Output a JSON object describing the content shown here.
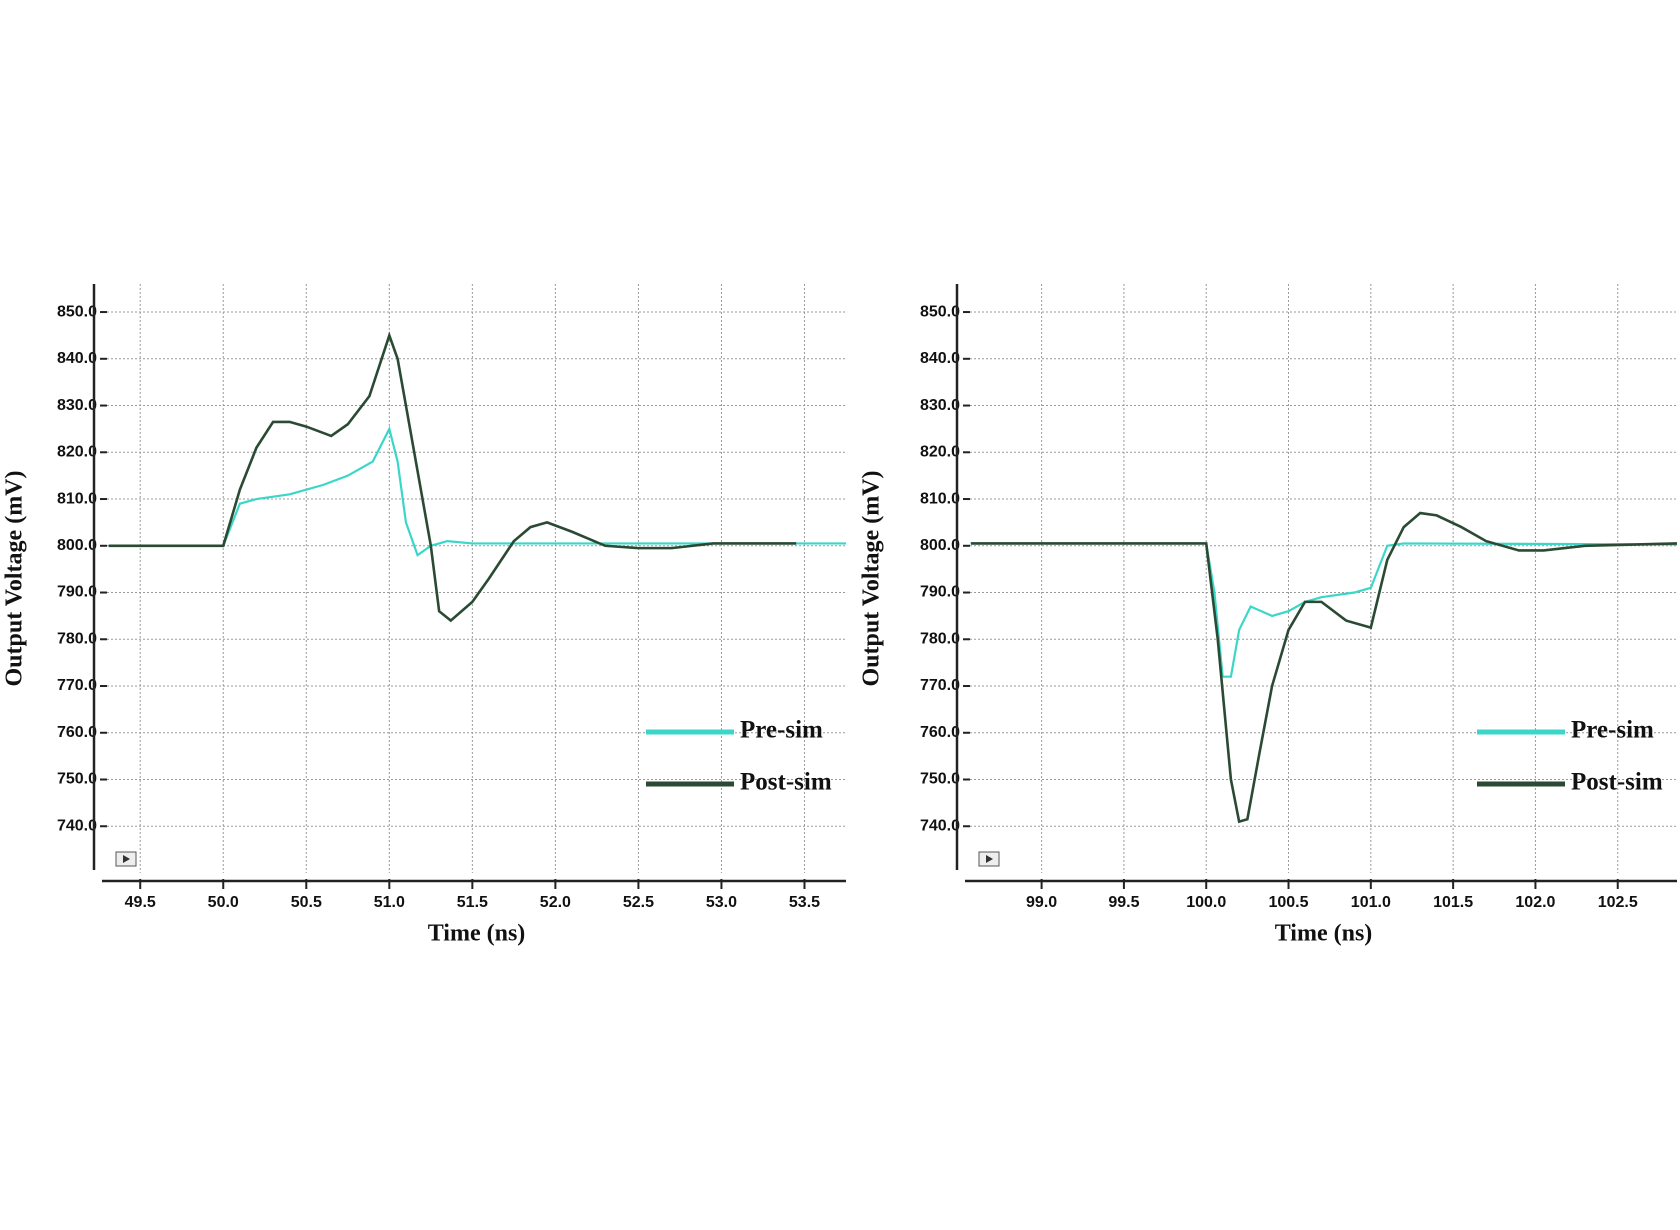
{
  "chart_data": [
    {
      "type": "line",
      "xlabel": "Time (ns)",
      "ylabel": "Output Voltage (mV)",
      "xlim": [
        49.3,
        53.75
      ],
      "ylim": [
        730,
        856
      ],
      "xticks": [
        49.5,
        {
          "value": 50,
          "label": "50.0"
        },
        50.5,
        {
          "value": 51,
          "label": "51.0"
        },
        51.5,
        {
          "value": 52,
          "label": "52.0"
        },
        52.5,
        {
          "value": 53,
          "label": "53.0"
        },
        53.5
      ],
      "yticks": [
        {
          "value": 740,
          "label": "740.0"
        },
        {
          "value": 750,
          "label": "750.0"
        },
        {
          "value": 760,
          "label": "760.0"
        },
        {
          "value": 770,
          "label": "770.0"
        },
        {
          "value": 780,
          "label": "780.0"
        },
        {
          "value": 790,
          "label": "790.0"
        },
        {
          "value": 800,
          "label": "800.0"
        },
        {
          "value": 810,
          "label": "810.0"
        },
        {
          "value": 820,
          "label": "820.0"
        },
        {
          "value": 830,
          "label": "830.0"
        },
        {
          "value": 840,
          "label": "840.0"
        },
        {
          "value": 850,
          "label": "850.0"
        }
      ],
      "grid": true,
      "legend": "lower right",
      "series": [
        {
          "name": "Pre-sim",
          "color": "#3ad7c8",
          "x": [
            49.31,
            50.0,
            50.1,
            50.2,
            50.4,
            50.6,
            50.75,
            50.9,
            51.0,
            51.05,
            51.1,
            51.17,
            51.25,
            51.35,
            51.5,
            53.75
          ],
          "values": [
            800,
            800,
            809,
            810,
            811,
            813,
            815,
            818,
            825,
            818,
            805,
            798,
            800,
            801,
            800.5,
            800.5
          ]
        },
        {
          "name": "Post-sim",
          "color": "#2b4a33",
          "x": [
            49.31,
            50.0,
            50.1,
            50.2,
            50.3,
            50.4,
            50.5,
            50.65,
            50.75,
            50.88,
            51.0,
            51.05,
            51.15,
            51.25,
            51.3,
            51.37,
            51.5,
            51.6,
            51.75,
            51.85,
            51.95,
            52.1,
            52.3,
            52.5,
            52.7,
            52.95,
            53.45
          ],
          "values": [
            800,
            800,
            812,
            821,
            826.5,
            826.5,
            825.5,
            823.5,
            826,
            832,
            845,
            840,
            820,
            800,
            786,
            784,
            788,
            793,
            801,
            804,
            805,
            803,
            800,
            799.5,
            799.5,
            800.5,
            800.5
          ]
        }
      ]
    },
    {
      "type": "line",
      "xlabel": "Time (ns)",
      "ylabel": "Output Voltage (mV)",
      "xlim": [
        98.565,
        102.86
      ],
      "ylim": [
        730,
        856
      ],
      "xticks": [
        {
          "value": 99,
          "label": "99.0"
        },
        99.5,
        {
          "value": 100,
          "label": "100.0"
        },
        100.5,
        {
          "value": 101,
          "label": "101.0"
        },
        101.5,
        {
          "value": 102,
          "label": "102.0"
        },
        102.5
      ],
      "yticks": [
        {
          "value": 740,
          "label": "740.0"
        },
        {
          "value": 750,
          "label": "750.0"
        },
        {
          "value": 760,
          "label": "760.0"
        },
        {
          "value": 770,
          "label": "770.0"
        },
        {
          "value": 780,
          "label": "780.0"
        },
        {
          "value": 790,
          "label": "790.0"
        },
        {
          "value": 800,
          "label": "800.0"
        },
        {
          "value": 810,
          "label": "810.0"
        },
        {
          "value": 820,
          "label": "820.0"
        },
        {
          "value": 830,
          "label": "830.0"
        },
        {
          "value": 840,
          "label": "840.0"
        },
        {
          "value": 850,
          "label": "850.0"
        }
      ],
      "grid": true,
      "legend": "lower right",
      "series": [
        {
          "name": "Pre-sim",
          "color": "#3ad7c8",
          "x": [
            98.57,
            100.0,
            100.05,
            100.1,
            100.15,
            100.2,
            100.27,
            100.4,
            100.5,
            100.6,
            100.7,
            100.9,
            101.0,
            101.1,
            101.2,
            102.86
          ],
          "values": [
            800.5,
            800.5,
            790,
            772,
            772,
            782,
            787,
            785,
            786,
            788,
            789,
            790,
            791,
            800,
            800.5,
            800.3
          ]
        },
        {
          "name": "Post-sim",
          "color": "#2b4a33",
          "x": [
            98.57,
            100.0,
            100.07,
            100.15,
            100.2,
            100.25,
            100.32,
            100.4,
            100.5,
            100.6,
            100.7,
            100.85,
            101.0,
            101.1,
            101.2,
            101.3,
            101.4,
            101.55,
            101.7,
            101.9,
            102.05,
            102.3,
            102.86
          ],
          "values": [
            800.5,
            800.5,
            780,
            750,
            741,
            741.5,
            755,
            770,
            782,
            788,
            788,
            784,
            782.5,
            797,
            804,
            807,
            806.5,
            804,
            801,
            799,
            799,
            800,
            800.5
          ]
        }
      ]
    }
  ]
}
